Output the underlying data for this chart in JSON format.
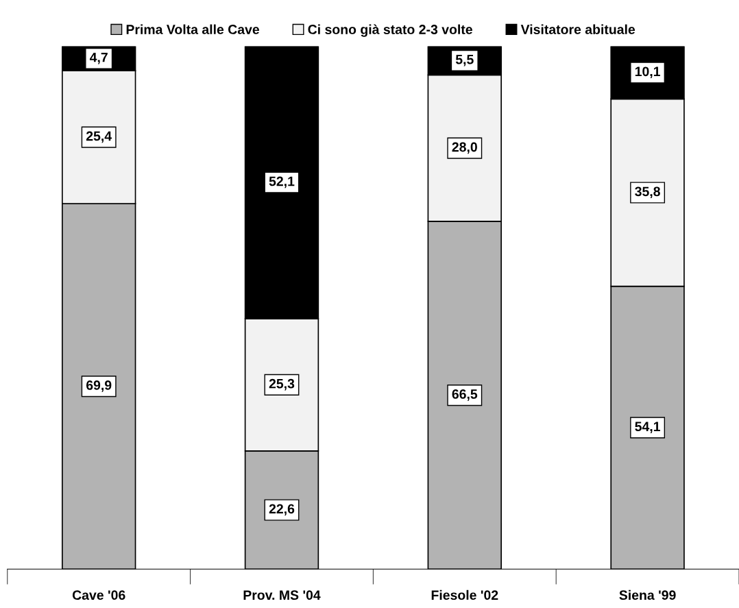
{
  "chart_data": {
    "type": "bar",
    "stacked": true,
    "categories": [
      "Cave '06",
      "Prov. MS '04",
      "Fiesole '02",
      "Siena '99"
    ],
    "series": [
      {
        "name": "Prima Volta alle Cave",
        "color": "#b3b3b3",
        "values": [
          69.9,
          22.6,
          66.5,
          54.1
        ],
        "value_labels": [
          "69,9",
          "22,6",
          "66,5",
          "54,1"
        ]
      },
      {
        "name": "Ci sono già stato 2-3 volte",
        "color": "#f2f2f2",
        "values": [
          25.4,
          25.3,
          28.0,
          35.8
        ],
        "value_labels": [
          "25,4",
          "25,3",
          "28,0",
          "35,8"
        ]
      },
      {
        "name": "Visitatore abituale",
        "color": "#000000",
        "values": [
          4.7,
          52.1,
          5.5,
          10.1
        ],
        "value_labels": [
          "4,7",
          "52,1",
          "5,5",
          "10,1"
        ]
      }
    ],
    "legend": "top",
    "grid": false,
    "tick_labels": "x"
  }
}
